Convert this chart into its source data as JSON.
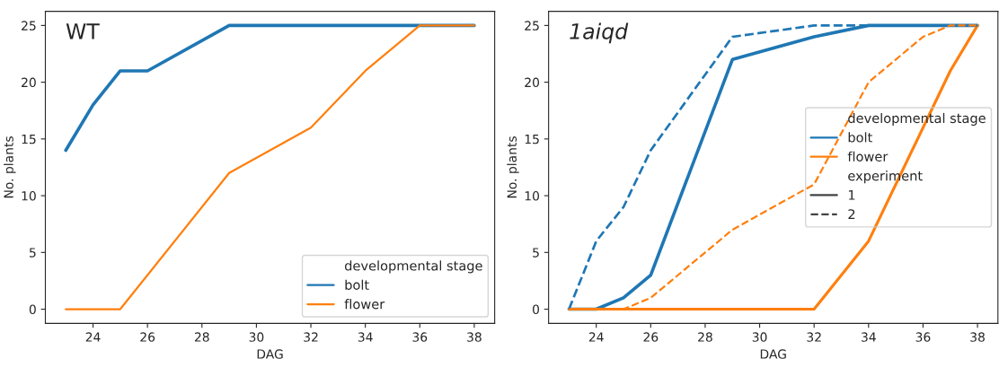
{
  "chart_data": [
    {
      "type": "line",
      "title": "WT",
      "xlabel": "DAG",
      "ylabel": "No. plants",
      "legend_title": "developmental stage",
      "legend": "bottom right",
      "grid": false,
      "xlim": [
        22.25,
        38.75
      ],
      "ylim": [
        -1.25,
        26.25
      ],
      "xticks": [
        24,
        26,
        28,
        30,
        32,
        34,
        36,
        38
      ],
      "yticks": [
        0,
        5,
        10,
        15,
        20,
        25
      ],
      "series": [
        {
          "name": "bolt",
          "color": "#1f77b4",
          "line_style": "solid",
          "x": [
            23,
            24,
            25,
            26,
            29,
            36,
            38
          ],
          "values": [
            14,
            18,
            21,
            21,
            25,
            25,
            25
          ]
        },
        {
          "name": "flower",
          "color": "#ff7f0e",
          "line_style": "solid",
          "x": [
            23,
            25,
            29,
            32,
            34,
            36,
            38
          ],
          "values": [
            0,
            0,
            12,
            16,
            21,
            25,
            25
          ]
        }
      ]
    },
    {
      "type": "line",
      "title": "1aiqd",
      "xlabel": "DAG",
      "ylabel": "No. plants",
      "legend_title": "developmental stage",
      "legend": "right",
      "grid": false,
      "annotations": [
        "experiment",
        "1",
        "2"
      ],
      "xlim": [
        22.25,
        38.75
      ],
      "ylim": [
        -1.25,
        26.25
      ],
      "xticks": [
        24,
        26,
        28,
        30,
        32,
        34,
        36,
        38
      ],
      "yticks": [
        0,
        5,
        10,
        15,
        20,
        25
      ],
      "series": [
        {
          "name": "bolt",
          "color": "#1f77b4",
          "line_style": "solid",
          "x": [
            23,
            24,
            25,
            26,
            29,
            32,
            34,
            37,
            38
          ],
          "values": [
            0,
            0,
            1,
            3,
            22,
            24,
            25,
            25,
            25
          ]
        },
        {
          "name": "flower",
          "color": "#ff7f0e",
          "line_style": "solid",
          "x": [
            23,
            32,
            34,
            37,
            38
          ],
          "values": [
            0,
            0,
            6,
            21,
            25
          ]
        },
        {
          "color": "#1f77b4",
          "line_style": "dashed",
          "x": [
            23,
            24,
            25,
            26,
            29,
            32,
            34,
            37,
            38
          ],
          "values": [
            0,
            6,
            9,
            14,
            24,
            25,
            25,
            25,
            25
          ]
        },
        {
          "color": "#ff7f0e",
          "line_style": "dashed",
          "x": [
            23,
            25,
            26,
            29,
            32,
            34,
            36,
            37,
            38
          ],
          "values": [
            0,
            0,
            1,
            7,
            11,
            20,
            24,
            25,
            25
          ]
        }
      ]
    }
  ]
}
